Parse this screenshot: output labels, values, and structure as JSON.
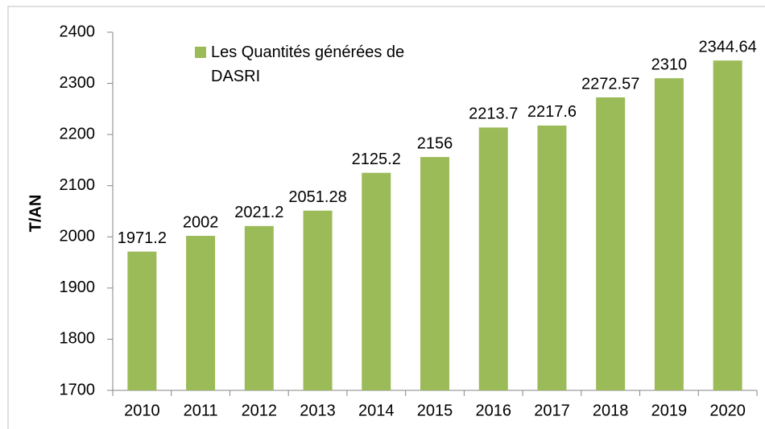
{
  "chart_data": {
    "type": "bar",
    "ylabel": "T/AN",
    "categories": [
      "2010",
      "2011",
      "2012",
      "2013",
      "2014",
      "2015",
      "2016",
      "2017",
      "2018",
      "2019",
      "2020"
    ],
    "series": [
      {
        "name": "Les Quantités générées de DASRI",
        "color": "#9bbb59",
        "values": [
          1971.2,
          2002,
          2021.2,
          2051.28,
          2125.2,
          2156,
          2213.7,
          2217.6,
          2272.57,
          2310,
          2344.64
        ]
      }
    ],
    "ylim": [
      1700,
      2400
    ],
    "yticks": [
      1700,
      1800,
      1900,
      2000,
      2100,
      2200,
      2300,
      2400
    ],
    "grid": false,
    "legend": "top-left"
  }
}
